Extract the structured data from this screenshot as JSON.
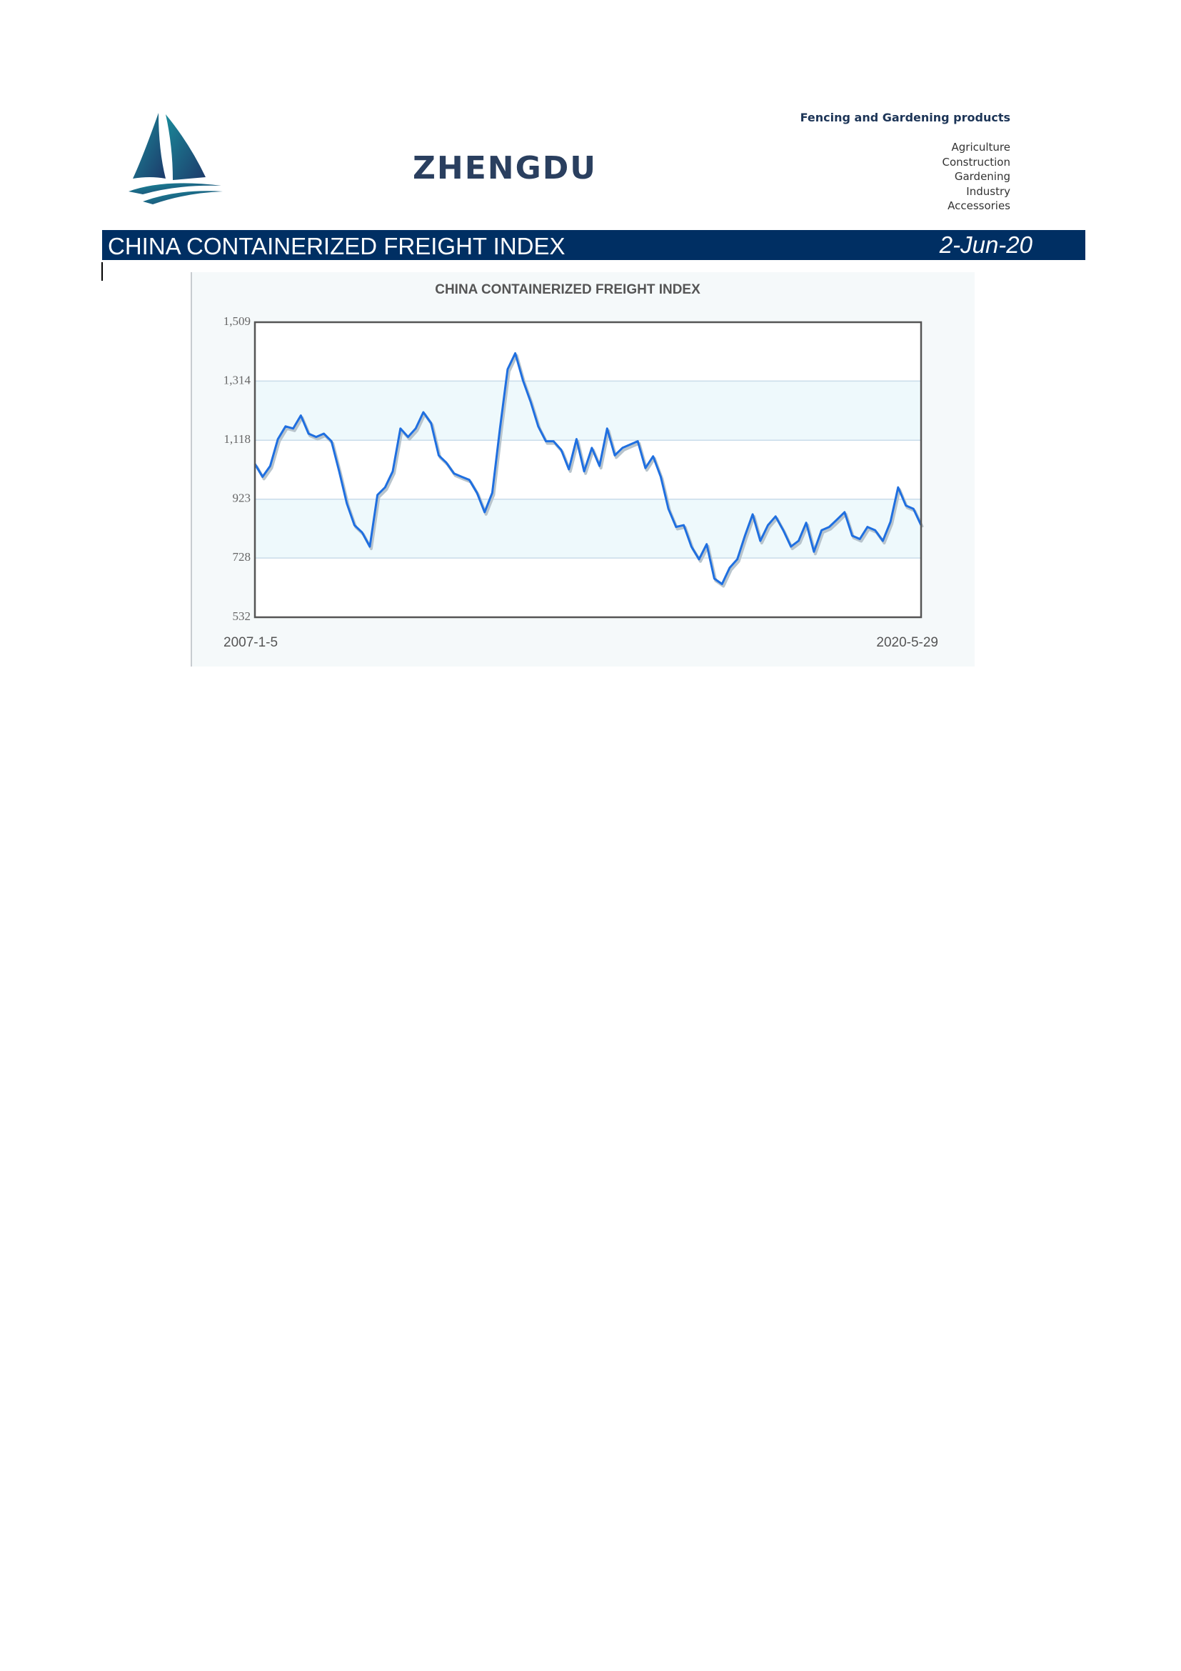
{
  "header": {
    "brand": "ZHENGDU",
    "tagline": "Fencing and Gardening products",
    "product_lines": [
      "Agriculture",
      "Construction",
      "Gardening",
      "Industry",
      "Accessories"
    ]
  },
  "banner": {
    "title": "CHINA CONTAINERIZED FREIGHT INDEX",
    "date": "2-Jun-20"
  },
  "chart_data": {
    "type": "line",
    "title": "CHINA CONTAINERIZED FREIGHT INDEX",
    "categories": [
      "2007-1-5",
      null,
      null,
      null,
      null,
      null,
      null,
      null,
      null,
      null,
      null,
      null,
      null,
      null,
      null,
      null,
      null,
      null,
      null,
      null,
      null,
      null,
      null,
      null,
      null,
      null,
      null,
      null,
      null,
      null,
      null,
      null,
      null,
      null,
      null,
      null,
      null,
      null,
      null,
      null,
      null,
      null,
      null,
      null,
      null,
      null,
      null,
      null,
      null,
      null,
      null,
      null,
      null,
      null,
      null,
      null,
      null,
      null,
      null,
      null,
      null,
      null,
      null,
      null,
      null,
      null,
      null,
      null,
      null,
      null,
      null,
      null,
      null,
      null,
      null,
      null,
      null,
      null,
      null,
      null,
      null,
      null,
      null,
      null,
      null,
      null,
      null,
      "2020-5-29"
    ],
    "series": [
      {
        "color": "#1f6fe0",
        "values": [
          1040,
          997,
          1033,
          1122,
          1164,
          1157,
          1200,
          1140,
          1129,
          1140,
          1115,
          1015,
          909,
          837,
          813,
          766,
          937,
          962,
          1015,
          1157,
          1129,
          1157,
          1211,
          1175,
          1068,
          1044,
          1008,
          997,
          987,
          944,
          880,
          944,
          1157,
          1353,
          1406,
          1317,
          1246,
          1164,
          1115,
          1115,
          1086,
          1022,
          1122,
          1015,
          1093,
          1033,
          1157,
          1068,
          1093,
          1104,
          1115,
          1026,
          1065,
          997,
          891,
          831,
          837,
          766,
          724,
          774,
          660,
          642,
          696,
          724,
          802,
          873,
          785,
          837,
          866,
          820,
          766,
          785,
          845,
          749,
          820,
          831,
          855,
          880,
          802,
          791,
          831,
          820,
          785,
          848,
          962,
          902,
          891,
          837
        ]
      }
    ],
    "ylim": [
      532,
      1509
    ],
    "yticks": [
      532,
      {
        "value": 728,
        "label": "728"
      },
      923,
      {
        "value": 1118,
        "label": "1,118"
      },
      {
        "value": 1314,
        "label": "1,314"
      },
      {
        "value": 1509,
        "label": "1,509"
      }
    ],
    "grid": true
  }
}
